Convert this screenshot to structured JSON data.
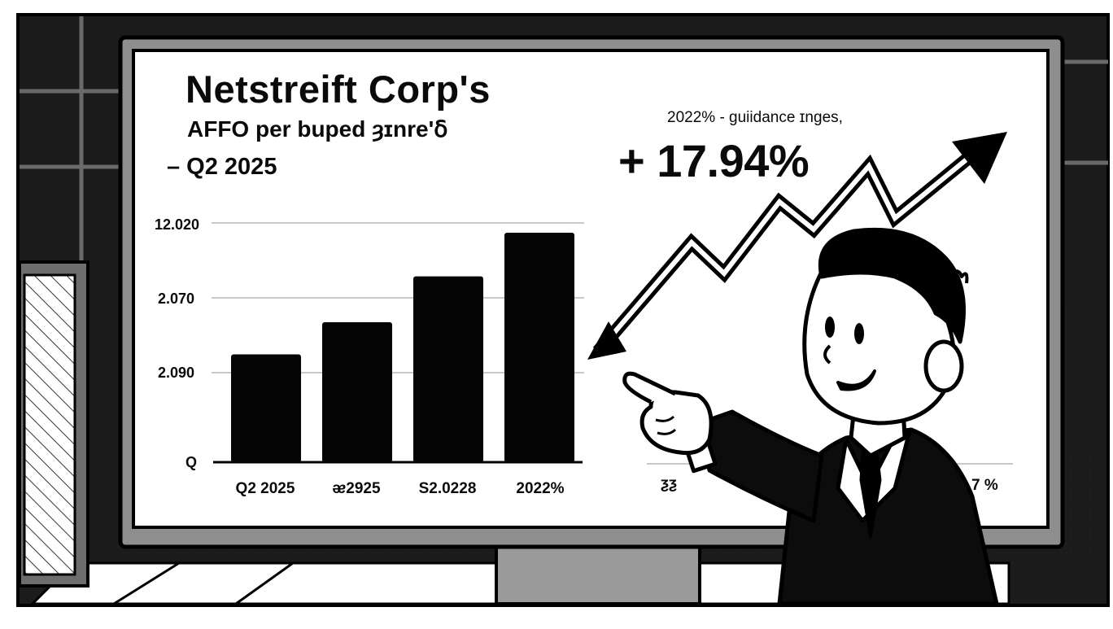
{
  "screen": {
    "title_line1": "Netstreift Corp's",
    "title_line2": "AFFO per buped ȝɪnre'ẟ",
    "title_line3": "– Q2 2025",
    "guidance_text": "2022% - guiidance ɪngеs,",
    "change_text": "+ 17.94%",
    "right_fragment_left": "ƺƺ",
    "right_fragment_right": "7 %"
  },
  "chart_data": {
    "type": "bar",
    "categories": [
      "Q2 2025",
      "ᴂ2925",
      "S2.0228",
      "2022%"
    ],
    "y_tick_labels": [
      "12.020",
      "2.070",
      "2.090",
      "Q"
    ],
    "values_fraction_of_axis": [
      0.47,
      0.61,
      0.81,
      1.0
    ],
    "bar_color": "#050505",
    "grid": true,
    "legend": "none"
  },
  "illustration": {
    "figure": "cartoon businessman pointing at chart",
    "arrow": "zigzag upward trend arrow"
  },
  "colors": {
    "ink": "#0a0a0a",
    "screen_bg": "#ffffff",
    "bezel": "#8a8a8a",
    "backdrop": "#1c1c1c"
  }
}
